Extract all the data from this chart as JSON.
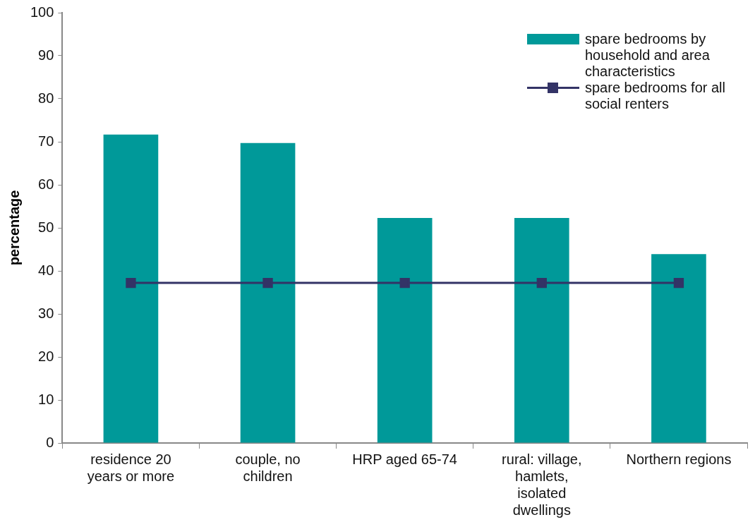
{
  "chart_data": {
    "type": "bar",
    "ylabel": "percentage",
    "categories": [
      "residence 20 years or more",
      "couple, no children",
      "HRP aged 65-74",
      "rural: village, hamlets, isolated dwellings",
      "Northern regions"
    ],
    "series": [
      {
        "name": "spare bedrooms by household and area characteristics",
        "color": "#009999",
        "values": [
          71.7,
          69.7,
          52.3,
          52.3,
          43.9
        ]
      },
      {
        "name": "spare bedrooms for all social renters",
        "type": "line",
        "color": "#333366",
        "values": [
          37.2,
          37.2,
          37.2,
          37.2,
          37.2
        ]
      }
    ],
    "ylim": [
      0,
      100
    ],
    "yticks": [
      0,
      10,
      20,
      30,
      40,
      50,
      60,
      70,
      80,
      90,
      100
    ],
    "grid": false,
    "legend": "top right",
    "marker": "square"
  }
}
